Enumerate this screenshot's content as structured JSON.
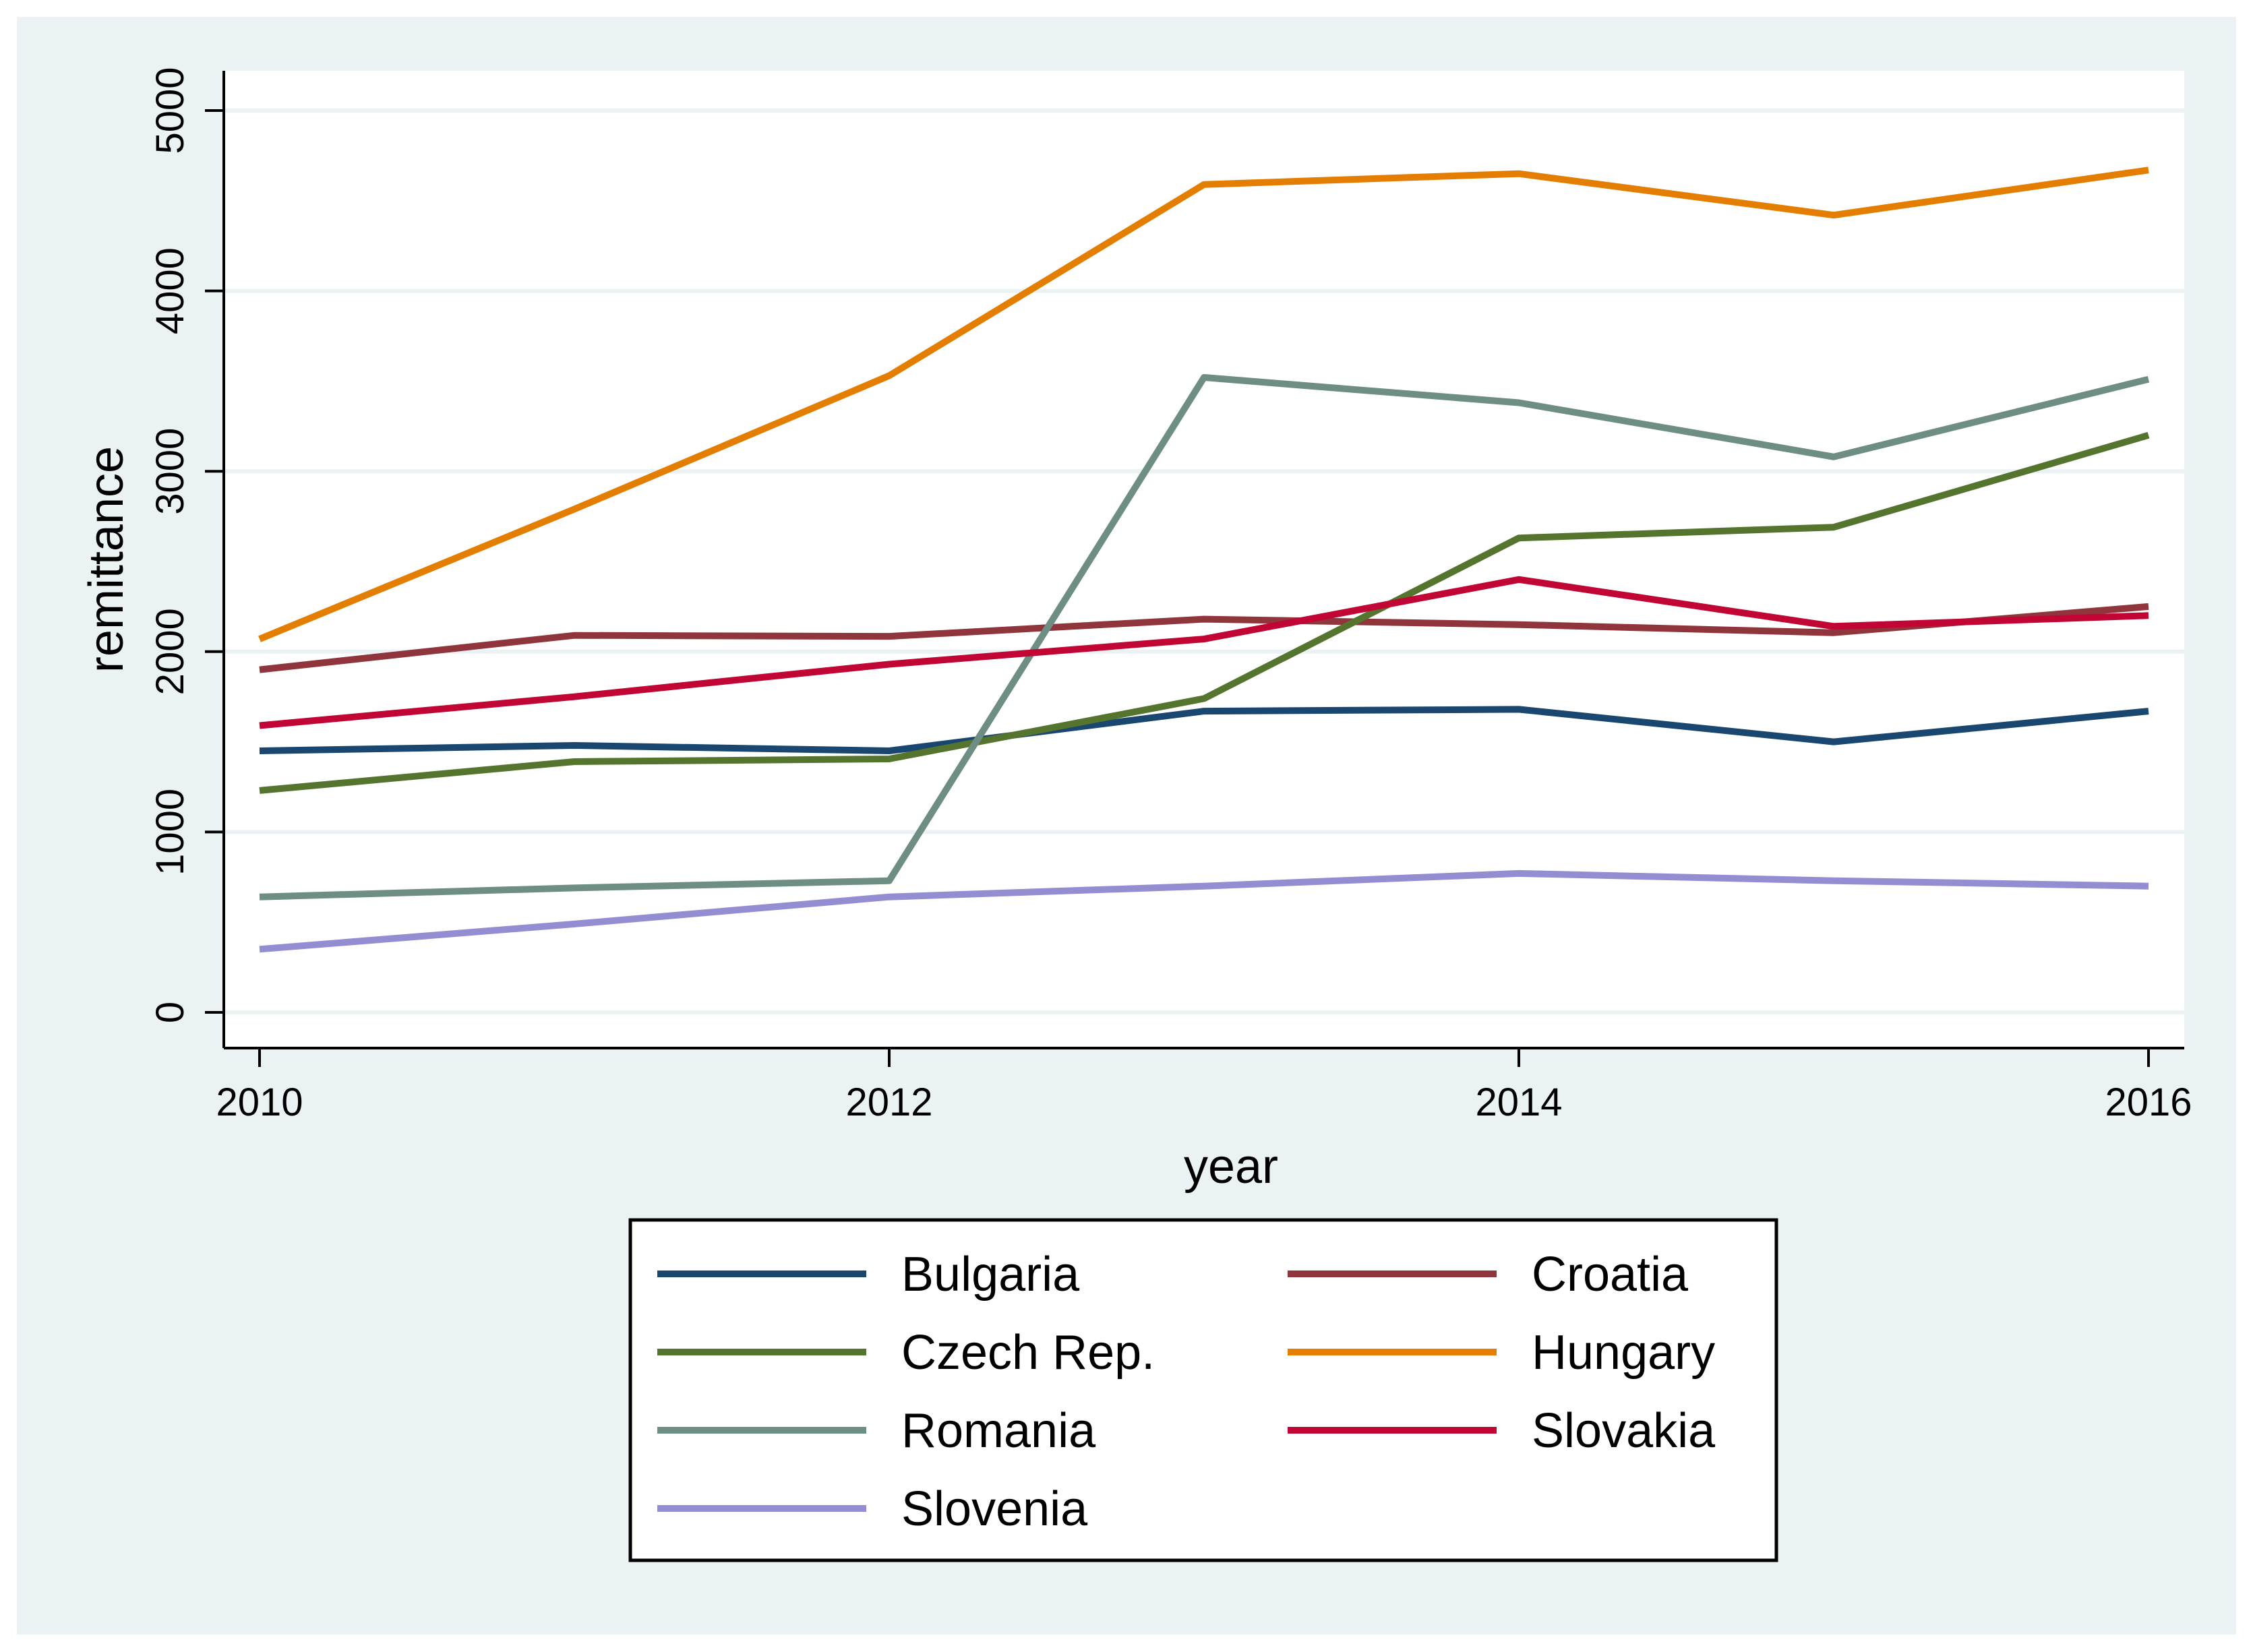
{
  "chart_data": {
    "type": "line",
    "title": "",
    "xlabel": "year",
    "ylabel": "remittance",
    "x": [
      2010,
      2011,
      2012,
      2013,
      2014,
      2015,
      2016
    ],
    "xticks": [
      "2010",
      "2012",
      "2014",
      "2016"
    ],
    "yticks": [
      "0",
      "1000",
      "2000",
      "3000",
      "4000",
      "5000"
    ],
    "xlim": [
      2010,
      2016
    ],
    "ylim": [
      0,
      5000
    ],
    "grid": true,
    "legend_position": "bottom",
    "background_color": "#eaf2f3",
    "plot_background_color": "#ffffff",
    "series": [
      {
        "name": "Bulgaria",
        "color": "#1a476f",
        "values": [
          1450,
          1480,
          1450,
          1670,
          1680,
          1500,
          1670
        ]
      },
      {
        "name": "Croatia",
        "color": "#90353b",
        "values": [
          1900,
          2090,
          2085,
          2180,
          2150,
          2105,
          2250
        ]
      },
      {
        "name": "Czech Rep.",
        "color": "#55752f",
        "values": [
          1230,
          1390,
          1405,
          1740,
          2630,
          2690,
          3200
        ]
      },
      {
        "name": "Hungary",
        "color": "#e37e00",
        "values": [
          2070,
          2790,
          3530,
          4590,
          4650,
          4420,
          4670
        ]
      },
      {
        "name": "Romania",
        "color": "#6e8e84",
        "values": [
          640,
          690,
          730,
          3520,
          3380,
          3080,
          3510
        ]
      },
      {
        "name": "Slovakia",
        "color": "#c10534",
        "values": [
          1590,
          1750,
          1930,
          2070,
          2400,
          2140,
          2200
        ]
      },
      {
        "name": "Slovenia",
        "color": "#938dd2",
        "values": [
          350,
          490,
          640,
          700,
          770,
          730,
          700
        ]
      }
    ]
  }
}
